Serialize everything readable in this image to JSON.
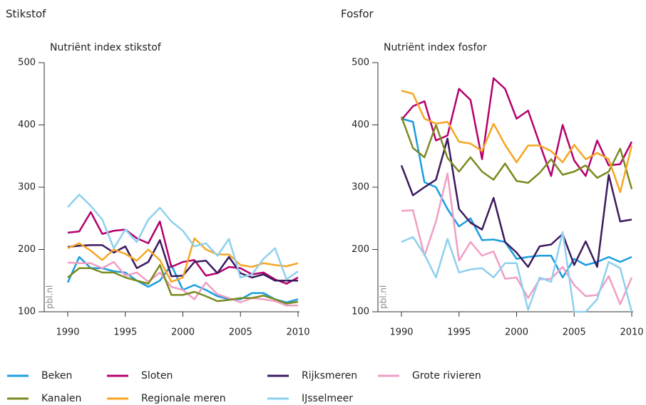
{
  "chart_data": [
    {
      "type": "line",
      "title": "Stikstof",
      "ylabel": "Nutriënt index stikstof",
      "watermark": "pbl.nl",
      "x": [
        1990,
        1991,
        1992,
        1993,
        1994,
        1995,
        1996,
        1997,
        1998,
        1999,
        2000,
        2001,
        2002,
        2003,
        2004,
        2005,
        2006,
        2007,
        2008,
        2009,
        2010
      ],
      "xlim": [
        1990,
        2010
      ],
      "xticks": [
        1990,
        1995,
        2000,
        2005,
        2010
      ],
      "ylim": [
        100,
        500
      ],
      "yticks": [
        100,
        200,
        300,
        400,
        500
      ],
      "series": [
        {
          "name": "Beken",
          "color": "#1a9ee0",
          "values": [
            147,
            188,
            170,
            170,
            165,
            163,
            150,
            140,
            150,
            175,
            135,
            143,
            135,
            125,
            120,
            120,
            130,
            130,
            120,
            115,
            120
          ]
        },
        {
          "name": "Sloten",
          "color": "#b5006e",
          "values": [
            227,
            229,
            260,
            225,
            230,
            232,
            218,
            210,
            245,
            172,
            180,
            183,
            158,
            162,
            172,
            170,
            160,
            163,
            152,
            145,
            155
          ]
        },
        {
          "name": "Rijksmeren",
          "color": "#3b1a5e",
          "values": [
            204,
            206,
            207,
            207,
            195,
            205,
            170,
            180,
            215,
            157,
            158,
            180,
            182,
            162,
            188,
            162,
            155,
            160,
            150,
            150,
            150
          ]
        },
        {
          "name": "Grote rivieren",
          "color": "#f09ec4",
          "values": [
            179,
            178,
            178,
            170,
            180,
            158,
            163,
            148,
            163,
            140,
            135,
            120,
            147,
            128,
            122,
            115,
            122,
            120,
            117,
            110,
            110
          ]
        },
        {
          "name": "Kanalen",
          "color": "#7a8a1e",
          "values": [
            155,
            170,
            170,
            163,
            163,
            155,
            150,
            145,
            175,
            127,
            127,
            132,
            125,
            117,
            119,
            122,
            122,
            126,
            120,
            113,
            116
          ]
        },
        {
          "name": "Regionale meren",
          "color": "#f5a623",
          "values": [
            202,
            210,
            198,
            183,
            200,
            193,
            182,
            200,
            183,
            148,
            155,
            218,
            200,
            192,
            192,
            175,
            172,
            178,
            175,
            173,
            178
          ]
        },
        {
          "name": "IJsselmeer",
          "color": "#8ed0ee",
          "values": [
            268,
            288,
            270,
            248,
            202,
            232,
            212,
            248,
            267,
            245,
            230,
            205,
            210,
            190,
            217,
            155,
            160,
            185,
            202,
            152,
            165
          ]
        }
      ]
    },
    {
      "type": "line",
      "title": "Fosfor",
      "ylabel": "Nutriënt index fosfor",
      "watermark": "pbl.nl",
      "x": [
        1990,
        1991,
        1992,
        1993,
        1994,
        1995,
        1996,
        1997,
        1998,
        1999,
        2000,
        2001,
        2002,
        2003,
        2004,
        2005,
        2006,
        2007,
        2008,
        2009,
        2010
      ],
      "xlim": [
        1990,
        2010
      ],
      "xticks": [
        1990,
        1995,
        2000,
        2005,
        2010
      ],
      "ylim": [
        100,
        500
      ],
      "yticks": [
        100,
        200,
        300,
        400,
        500
      ],
      "series": [
        {
          "color": "#1a9ee0",
          "values": [
            410,
            405,
            308,
            300,
            265,
            237,
            250,
            215,
            216,
            212,
            185,
            188,
            190,
            190,
            155,
            185,
            175,
            180,
            188,
            180,
            188
          ]
        },
        {
          "color": "#b5006e",
          "values": [
            408,
            430,
            438,
            375,
            383,
            458,
            440,
            345,
            475,
            458,
            410,
            423,
            370,
            318,
            400,
            343,
            318,
            375,
            335,
            337,
            373
          ]
        },
        {
          "color": "#3b1a5e",
          "values": [
            335,
            287,
            300,
            312,
            378,
            265,
            243,
            232,
            283,
            212,
            195,
            172,
            205,
            208,
            225,
            175,
            213,
            172,
            320,
            245,
            248
          ]
        },
        {
          "color": "#f09ec4",
          "values": [
            262,
            263,
            190,
            245,
            322,
            182,
            212,
            190,
            197,
            153,
            155,
            122,
            152,
            153,
            172,
            143,
            125,
            127,
            157,
            112,
            155
          ]
        },
        {
          "color": "#7a8a1e",
          "values": [
            413,
            363,
            348,
            400,
            347,
            325,
            348,
            325,
            312,
            338,
            310,
            307,
            323,
            345,
            320,
            325,
            335,
            315,
            325,
            362,
            297
          ]
        },
        {
          "color": "#f5a623",
          "values": [
            455,
            450,
            410,
            402,
            405,
            373,
            370,
            358,
            402,
            368,
            340,
            367,
            367,
            358,
            340,
            368,
            345,
            355,
            345,
            292,
            367
          ]
        },
        {
          "color": "#8ed0ee",
          "values": [
            212,
            220,
            192,
            155,
            217,
            163,
            168,
            170,
            155,
            178,
            178,
            103,
            155,
            148,
            228,
            100,
            100,
            120,
            180,
            170,
            100
          ]
        }
      ]
    }
  ]
}
